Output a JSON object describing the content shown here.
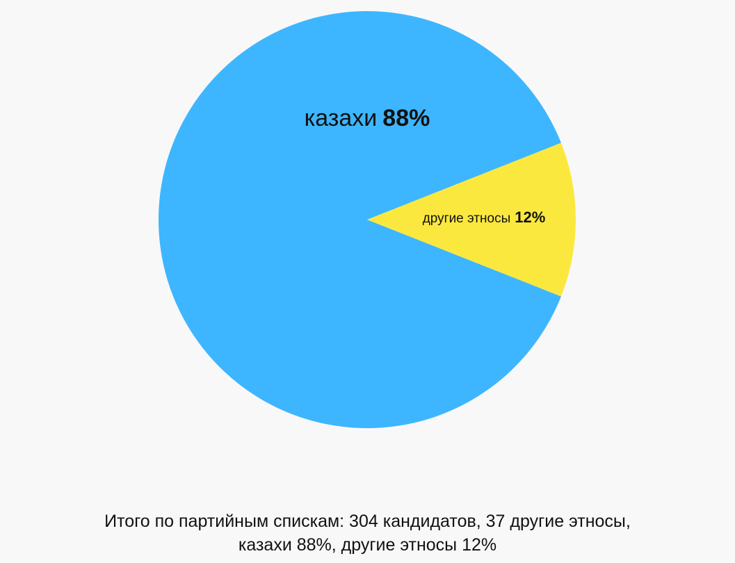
{
  "chart_data": {
    "type": "pie",
    "slices": [
      {
        "label": "казахи",
        "value": 88,
        "value_label": "88%",
        "color": "#3db6ff"
      },
      {
        "label": "другие этносы",
        "value": 12,
        "value_label": "12%",
        "color": "#fbe83f"
      }
    ]
  },
  "footer": {
    "line1": "Итого по партийным спискам: 304 кандидатов, 37 другие этносы,",
    "line2": "казахи 88%, другие этносы 12%"
  }
}
